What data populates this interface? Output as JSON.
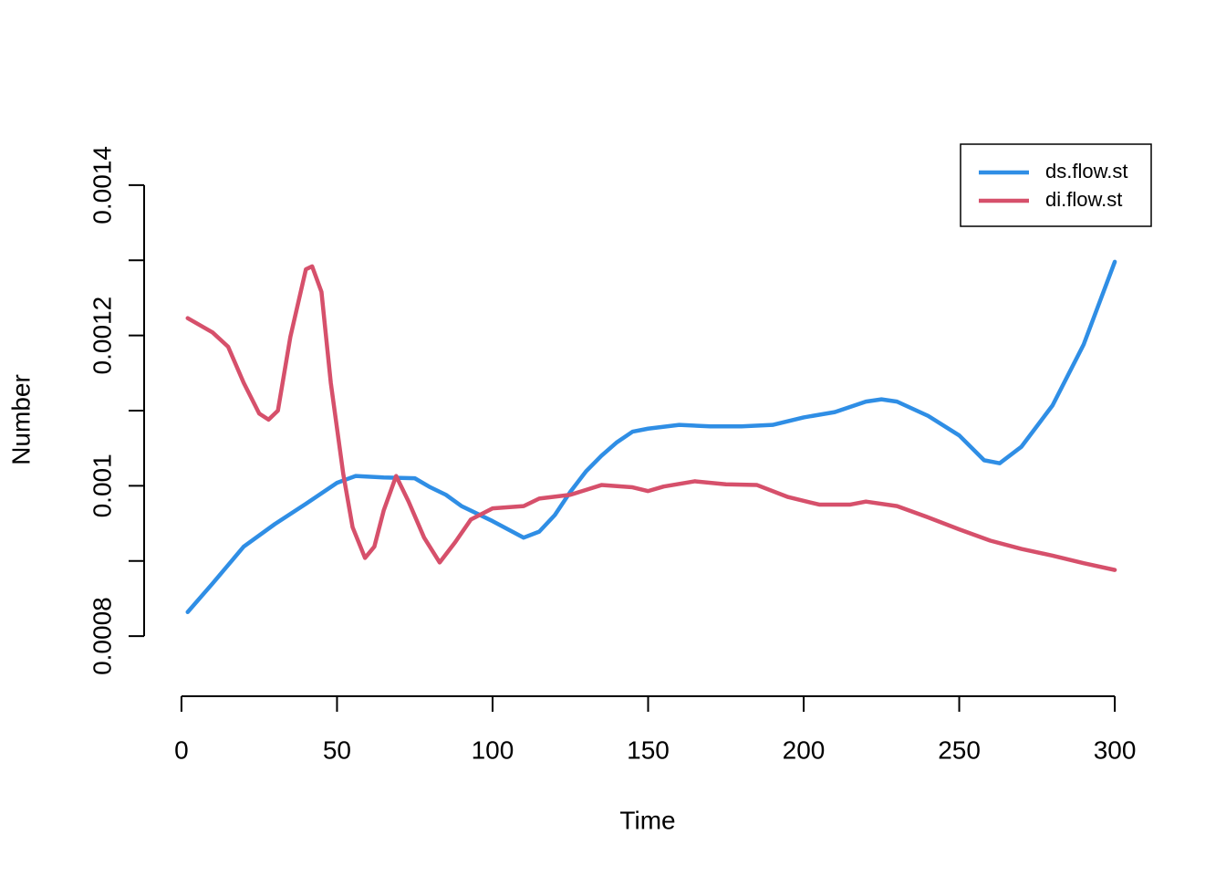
{
  "chart_data": {
    "type": "line",
    "x_label": "Time",
    "y_label": "Number",
    "xlim": [
      -12,
      312
    ],
    "ylim": [
      0.00072,
      0.00148
    ],
    "xticks": [
      0,
      50,
      100,
      150,
      200,
      250,
      300
    ],
    "yticks": [
      0.0008,
      0.001,
      0.0012,
      0.0014
    ],
    "yticks_minor": [
      0.0009,
      0.0011,
      0.0013
    ],
    "legend": "top-right",
    "series": [
      {
        "name": "ds.flow.st",
        "color": "#2f8ee5",
        "x": [
          2,
          10,
          20,
          30,
          40,
          50,
          56,
          65,
          75,
          80,
          85,
          90,
          100,
          110,
          115,
          120,
          125,
          130,
          135,
          140,
          145,
          150,
          160,
          170,
          180,
          190,
          200,
          210,
          220,
          225,
          230,
          240,
          250,
          258,
          263,
          270,
          280,
          290,
          300
        ],
        "values": [
          0.000832,
          0.00087,
          0.000919,
          0.000949,
          0.000976,
          0.001004,
          0.001013,
          0.001011,
          0.00101,
          0.000998,
          0.000988,
          0.000973,
          0.000953,
          0.000931,
          0.000939,
          0.000961,
          0.000992,
          0.001019,
          0.00104,
          0.001058,
          0.001072,
          0.001076,
          0.001081,
          0.001079,
          0.001079,
          0.001081,
          0.001091,
          0.001098,
          0.001112,
          0.001115,
          0.001112,
          0.001093,
          0.001067,
          0.001034,
          0.00103,
          0.001052,
          0.001107,
          0.001188,
          0.001298
        ]
      },
      {
        "name": "di.flow.st",
        "color": "#d6506b",
        "x": [
          2,
          10,
          15,
          20,
          25,
          28,
          31,
          35,
          40,
          42,
          45,
          48,
          52,
          55,
          59,
          62,
          65,
          69,
          73,
          78,
          83,
          88,
          93,
          100,
          110,
          115,
          125,
          135,
          145,
          150,
          155,
          165,
          175,
          185,
          195,
          205,
          215,
          220,
          230,
          240,
          250,
          260,
          270,
          280,
          290,
          300
        ],
        "values": [
          0.001223,
          0.001204,
          0.001185,
          0.001137,
          0.001096,
          0.001088,
          0.0011,
          0.001198,
          0.001288,
          0.001292,
          0.001258,
          0.001137,
          0.001016,
          0.000945,
          0.000904,
          0.000919,
          0.000967,
          0.001013,
          0.000979,
          0.000931,
          0.000898,
          0.000925,
          0.000955,
          0.00097,
          0.000973,
          0.000983,
          0.000988,
          0.001001,
          0.000998,
          0.000993,
          0.000999,
          0.001006,
          0.001002,
          0.001001,
          0.000985,
          0.000975,
          0.000975,
          0.000979,
          0.000973,
          0.000958,
          0.000942,
          0.000927,
          0.000916,
          0.000907,
          0.000897,
          0.000888
        ]
      }
    ]
  }
}
